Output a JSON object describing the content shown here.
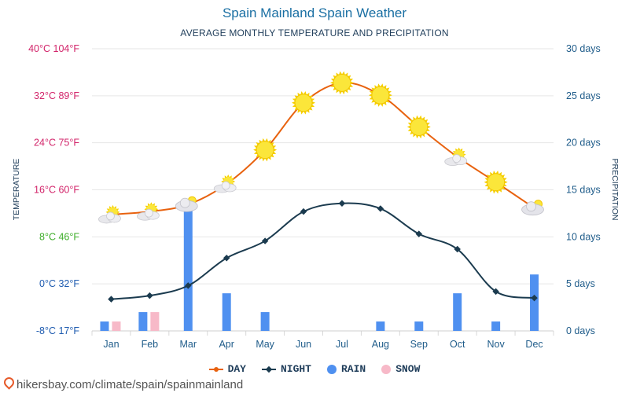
{
  "header": {
    "title": "Spain Mainland Spain Weather",
    "subtitle": "AVERAGE MONTHLY TEMPERATURE AND PRECIPITATION"
  },
  "footer": {
    "source": "hikersbay.com/climate/spain/spainmainland"
  },
  "colors": {
    "day": "#e8620f",
    "night": "#1b3b4f",
    "rain": "#4f90f0",
    "snow": "#f7b9c8",
    "right_axis": "#1f5c8a"
  },
  "chart_data": {
    "type": "line",
    "title": "Spain Mainland Spain Weather",
    "subtitle": "AVERAGE MONTHLY TEMPERATURE AND PRECIPITATION",
    "categories": [
      "Jan",
      "Feb",
      "Mar",
      "Apr",
      "May",
      "Jun",
      "Jul",
      "Aug",
      "Sep",
      "Oct",
      "Nov",
      "Dec"
    ],
    "left_axis": {
      "label": "TEMPERATURE",
      "unit": "°C",
      "ylim": [
        -8,
        40
      ],
      "ticks": [
        {
          "value": 40,
          "label": "40°C 104°F",
          "color": "#d2246a"
        },
        {
          "value": 32,
          "label": "32°C 89°F",
          "color": "#d2246a"
        },
        {
          "value": 24,
          "label": "24°C 75°F",
          "color": "#d2246a"
        },
        {
          "value": 16,
          "label": "16°C 60°F",
          "color": "#d2246a"
        },
        {
          "value": 8,
          "label": "8°C 46°F",
          "color": "#3fae2b"
        },
        {
          "value": 0,
          "label": "0°C 32°F",
          "color": "#1f5cb0"
        },
        {
          "value": -8,
          "label": "-8°C 17°F",
          "color": "#1f5cb0"
        }
      ]
    },
    "right_axis": {
      "label": "PRECIPITATION",
      "unit": "days",
      "ylim": [
        0,
        30
      ],
      "ticks": [
        {
          "value": 30,
          "label": "30 days"
        },
        {
          "value": 25,
          "label": "25 days"
        },
        {
          "value": 20,
          "label": "20 days"
        },
        {
          "value": 15,
          "label": "15 days"
        },
        {
          "value": 10,
          "label": "10 days"
        },
        {
          "value": 5,
          "label": "5 days"
        },
        {
          "value": 0,
          "label": "0 days"
        }
      ]
    },
    "series": [
      {
        "name": "DAY",
        "kind": "line",
        "axis": "left",
        "values": [
          11.8,
          12.3,
          13.5,
          17.0,
          22.8,
          30.8,
          34.2,
          32.1,
          26.7,
          21.6,
          17.3,
          12.9
        ],
        "icons": [
          "partly-cloudy",
          "partly-cloudy",
          "cloudy",
          "partly-cloudy",
          "sun",
          "sun",
          "sun",
          "sun",
          "sun",
          "partly-cloudy",
          "sun",
          "cloudy"
        ]
      },
      {
        "name": "NIGHT",
        "kind": "line",
        "axis": "left",
        "values": [
          -2.6,
          -2.0,
          -0.3,
          4.4,
          7.3,
          12.3,
          13.7,
          12.8,
          8.5,
          5.9,
          -1.3,
          -2.4
        ]
      },
      {
        "name": "RAIN",
        "kind": "bar",
        "axis": "right",
        "values": [
          1,
          2,
          13,
          4,
          2,
          0,
          0,
          1,
          1,
          4,
          1,
          6
        ]
      },
      {
        "name": "SNOW",
        "kind": "bar",
        "axis": "right",
        "values": [
          1,
          2,
          0,
          0,
          0,
          0,
          0,
          0,
          0,
          0,
          0,
          0
        ]
      }
    ],
    "grid": true,
    "legend": "bottom-center"
  }
}
